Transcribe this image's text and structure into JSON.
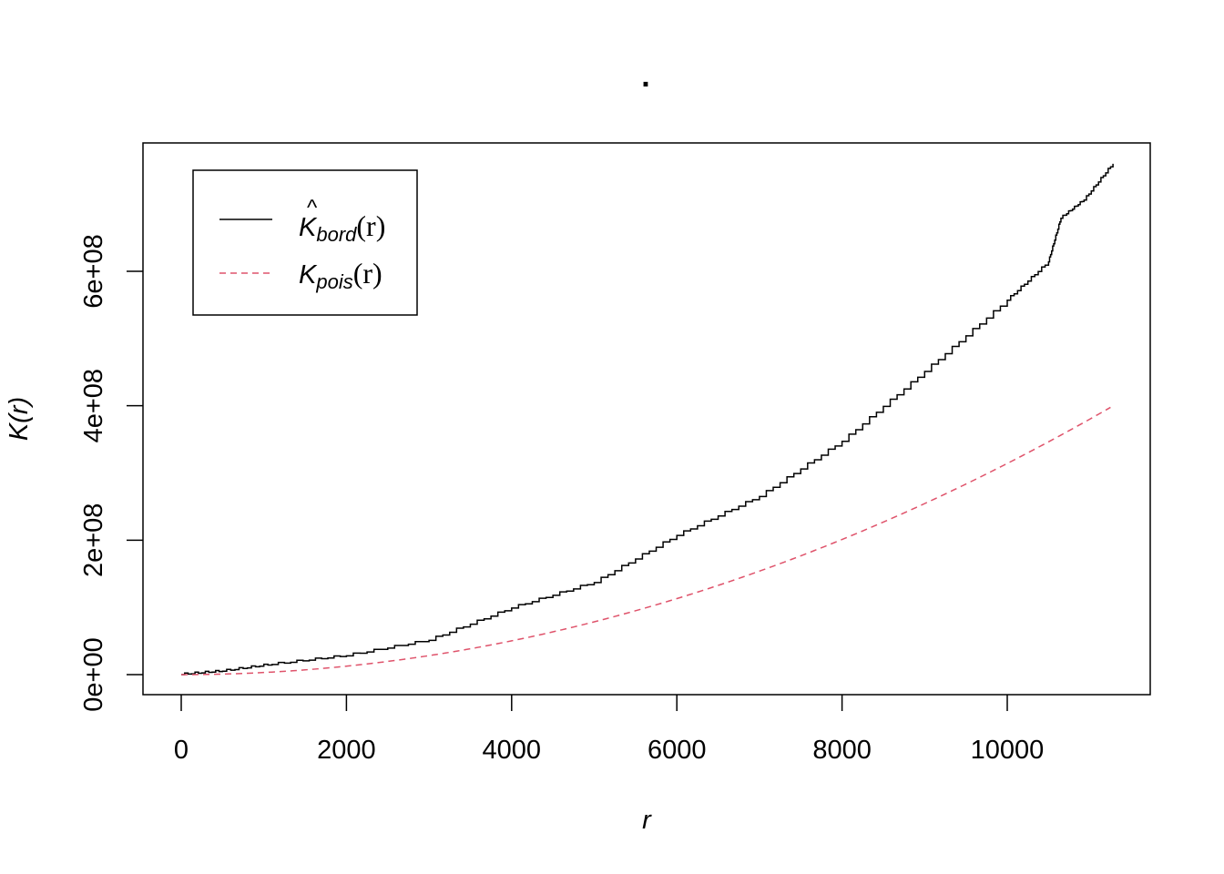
{
  "chart_data": {
    "type": "line",
    "title": ".",
    "xlabel": "r",
    "ylabel": "K(r)",
    "xlim": [
      0,
      11280
    ],
    "ylim": [
      0,
      760000000
    ],
    "x_ticks": [
      0,
      2000,
      4000,
      6000,
      8000,
      10000
    ],
    "x_tick_labels": [
      "0",
      "2000",
      "4000",
      "6000",
      "8000",
      "10000"
    ],
    "y_ticks": [
      0,
      200000000,
      400000000,
      600000000
    ],
    "y_tick_labels": [
      "0e+00",
      "2e+08",
      "4e+08",
      "6e+08"
    ],
    "legend_position": "top-left",
    "series": [
      {
        "name": "K̂bord(r)",
        "legend_main": "K",
        "legend_sub": "bord",
        "legend_arg": "(r)",
        "hat": true,
        "color": "#000000",
        "dash": "solid",
        "x": [
          0,
          500,
          1100,
          2000,
          3000,
          4000,
          5000,
          6000,
          7000,
          8000,
          9000,
          10000,
          10500,
          10650,
          10930,
          11280
        ],
        "y": [
          0,
          5000000,
          15000000,
          28000000,
          51000000,
          99000000,
          137000000,
          207000000,
          265000000,
          347000000,
          451000000,
          557000000,
          614000000,
          679000000,
          706000000,
          760000000
        ]
      },
      {
        "name": "Kpois(r)",
        "legend_main": "K",
        "legend_sub": "pois",
        "legend_arg": "(r)",
        "hat": false,
        "color": "#DF536B",
        "dash": "dashed",
        "formula": "pi*r^2",
        "x_max": 11250
      }
    ]
  }
}
